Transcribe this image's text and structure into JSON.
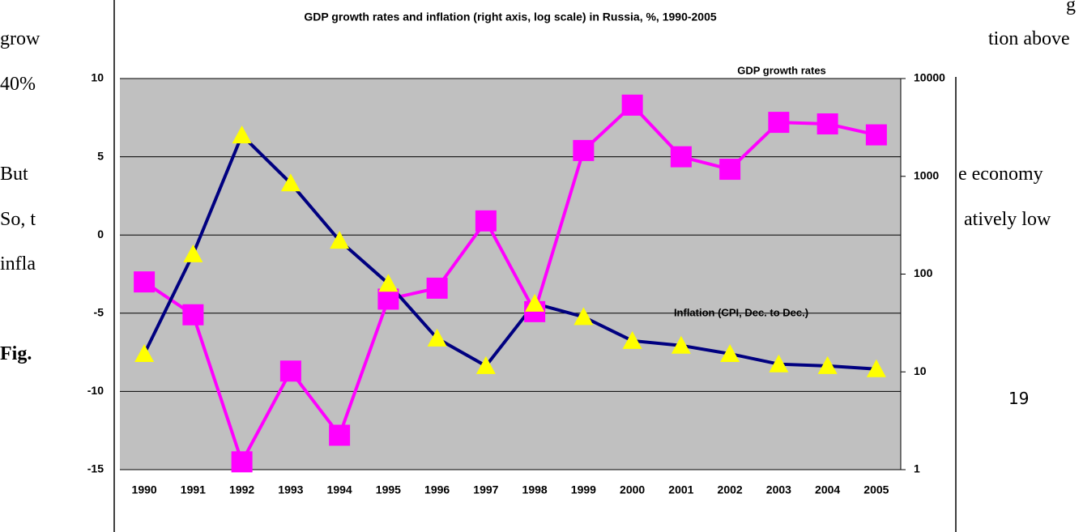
{
  "document": {
    "left": [
      "grow",
      "40%",
      "But",
      "So, t",
      "infla"
    ],
    "fig": "Fig.",
    "right": [
      "tion above",
      "e economy",
      "atively low"
    ],
    "corner": "g",
    "page_number": "19"
  },
  "chart_data": {
    "type": "line",
    "title": "GDP growth rates and inflation (right axis, log scale) in Russia, %, 1990-2005",
    "categories": [
      "1990",
      "1991",
      "1992",
      "1993",
      "1994",
      "1995",
      "1996",
      "1997",
      "1998",
      "1999",
      "2000",
      "2001",
      "2002",
      "2003",
      "2004",
      "2005"
    ],
    "series": [
      {
        "name": "GDP growth rates",
        "color": "#ff00ff",
        "marker_color": "#ff00ff",
        "marker": "square",
        "axis": "y",
        "values": [
          -3.0,
          -5.1,
          -14.5,
          -8.7,
          -12.8,
          -4.1,
          -3.4,
          0.9,
          -4.9,
          5.4,
          8.3,
          5.0,
          4.2,
          7.2,
          7.1,
          6.4
        ]
      },
      {
        "name": "Inflation (CPI, Dec. to Dec.)",
        "color": "#000080",
        "marker_color": "#ffff00",
        "marker": "triangle",
        "axis": "y2",
        "values": [
          15.3,
          160,
          2630,
          850,
          220,
          80,
          22,
          11.5,
          50,
          36.5,
          20.8,
          18.6,
          15.3,
          12,
          11.5,
          10.7
        ]
      }
    ],
    "ylim": [
      -15,
      10
    ],
    "yticks": [
      -15,
      -10,
      -5,
      0,
      5,
      10
    ],
    "y2lim": [
      1,
      10000
    ],
    "y2ticks": [
      1,
      10,
      100,
      1000,
      10000
    ],
    "y2_log": true,
    "grid": true,
    "plot_background": "#c0c0c0"
  }
}
